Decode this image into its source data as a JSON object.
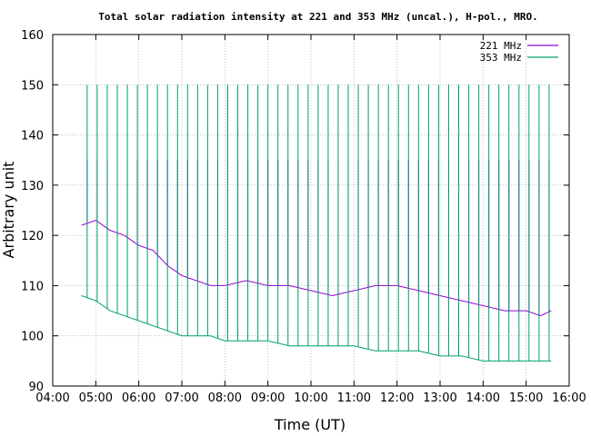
{
  "chart_data": {
    "type": "line",
    "title": "Total solar radiation intensity at 221 and 353 MHz (uncal.), H-pol., MRO.",
    "xlabel": "Time (UT)",
    "ylabel": "Arbitrary unit",
    "xlim": [
      "04:00",
      "16:00"
    ],
    "ylim": [
      90,
      160
    ],
    "x_ticks": [
      "04:00",
      "05:00",
      "06:00",
      "07:00",
      "08:00",
      "09:00",
      "10:00",
      "11:00",
      "12:00",
      "13:00",
      "14:00",
      "15:00",
      "16:00"
    ],
    "y_ticks": [
      90,
      100,
      110,
      120,
      130,
      140,
      150,
      160
    ],
    "grid": true,
    "legend_position": "top-right",
    "series": [
      {
        "name": "221 MHz",
        "color": "#9400d3",
        "x": [
          "04:40",
          "05:00",
          "05:20",
          "05:40",
          "06:00",
          "06:20",
          "06:40",
          "07:00",
          "07:20",
          "07:40",
          "08:00",
          "08:30",
          "09:00",
          "09:30",
          "10:00",
          "10:30",
          "11:00",
          "11:30",
          "12:00",
          "12:30",
          "13:00",
          "13:30",
          "14:00",
          "14:30",
          "15:00",
          "15:20",
          "15:35"
        ],
        "values": [
          122,
          123,
          121,
          120,
          118,
          117,
          114,
          112,
          111,
          110,
          110,
          111,
          110,
          110,
          109,
          108,
          109,
          110,
          110,
          109,
          108,
          107,
          106,
          105,
          105,
          104,
          105
        ],
        "spikes_to": 135
      },
      {
        "name": "353 MHz",
        "color": "#009e73",
        "x": [
          "04:40",
          "05:00",
          "05:20",
          "05:40",
          "06:00",
          "06:20",
          "06:40",
          "07:00",
          "07:20",
          "07:40",
          "08:00",
          "08:30",
          "09:00",
          "09:30",
          "10:00",
          "10:30",
          "11:00",
          "11:30",
          "12:00",
          "12:30",
          "13:00",
          "13:30",
          "14:00",
          "14:30",
          "15:00",
          "15:20",
          "15:35"
        ],
        "values": [
          108,
          107,
          105,
          104,
          103,
          102,
          101,
          100,
          100,
          100,
          99,
          99,
          99,
          98,
          98,
          98,
          98,
          97,
          97,
          97,
          96,
          96,
          95,
          95,
          95,
          95,
          95
        ],
        "spikes_to": 150
      }
    ]
  }
}
